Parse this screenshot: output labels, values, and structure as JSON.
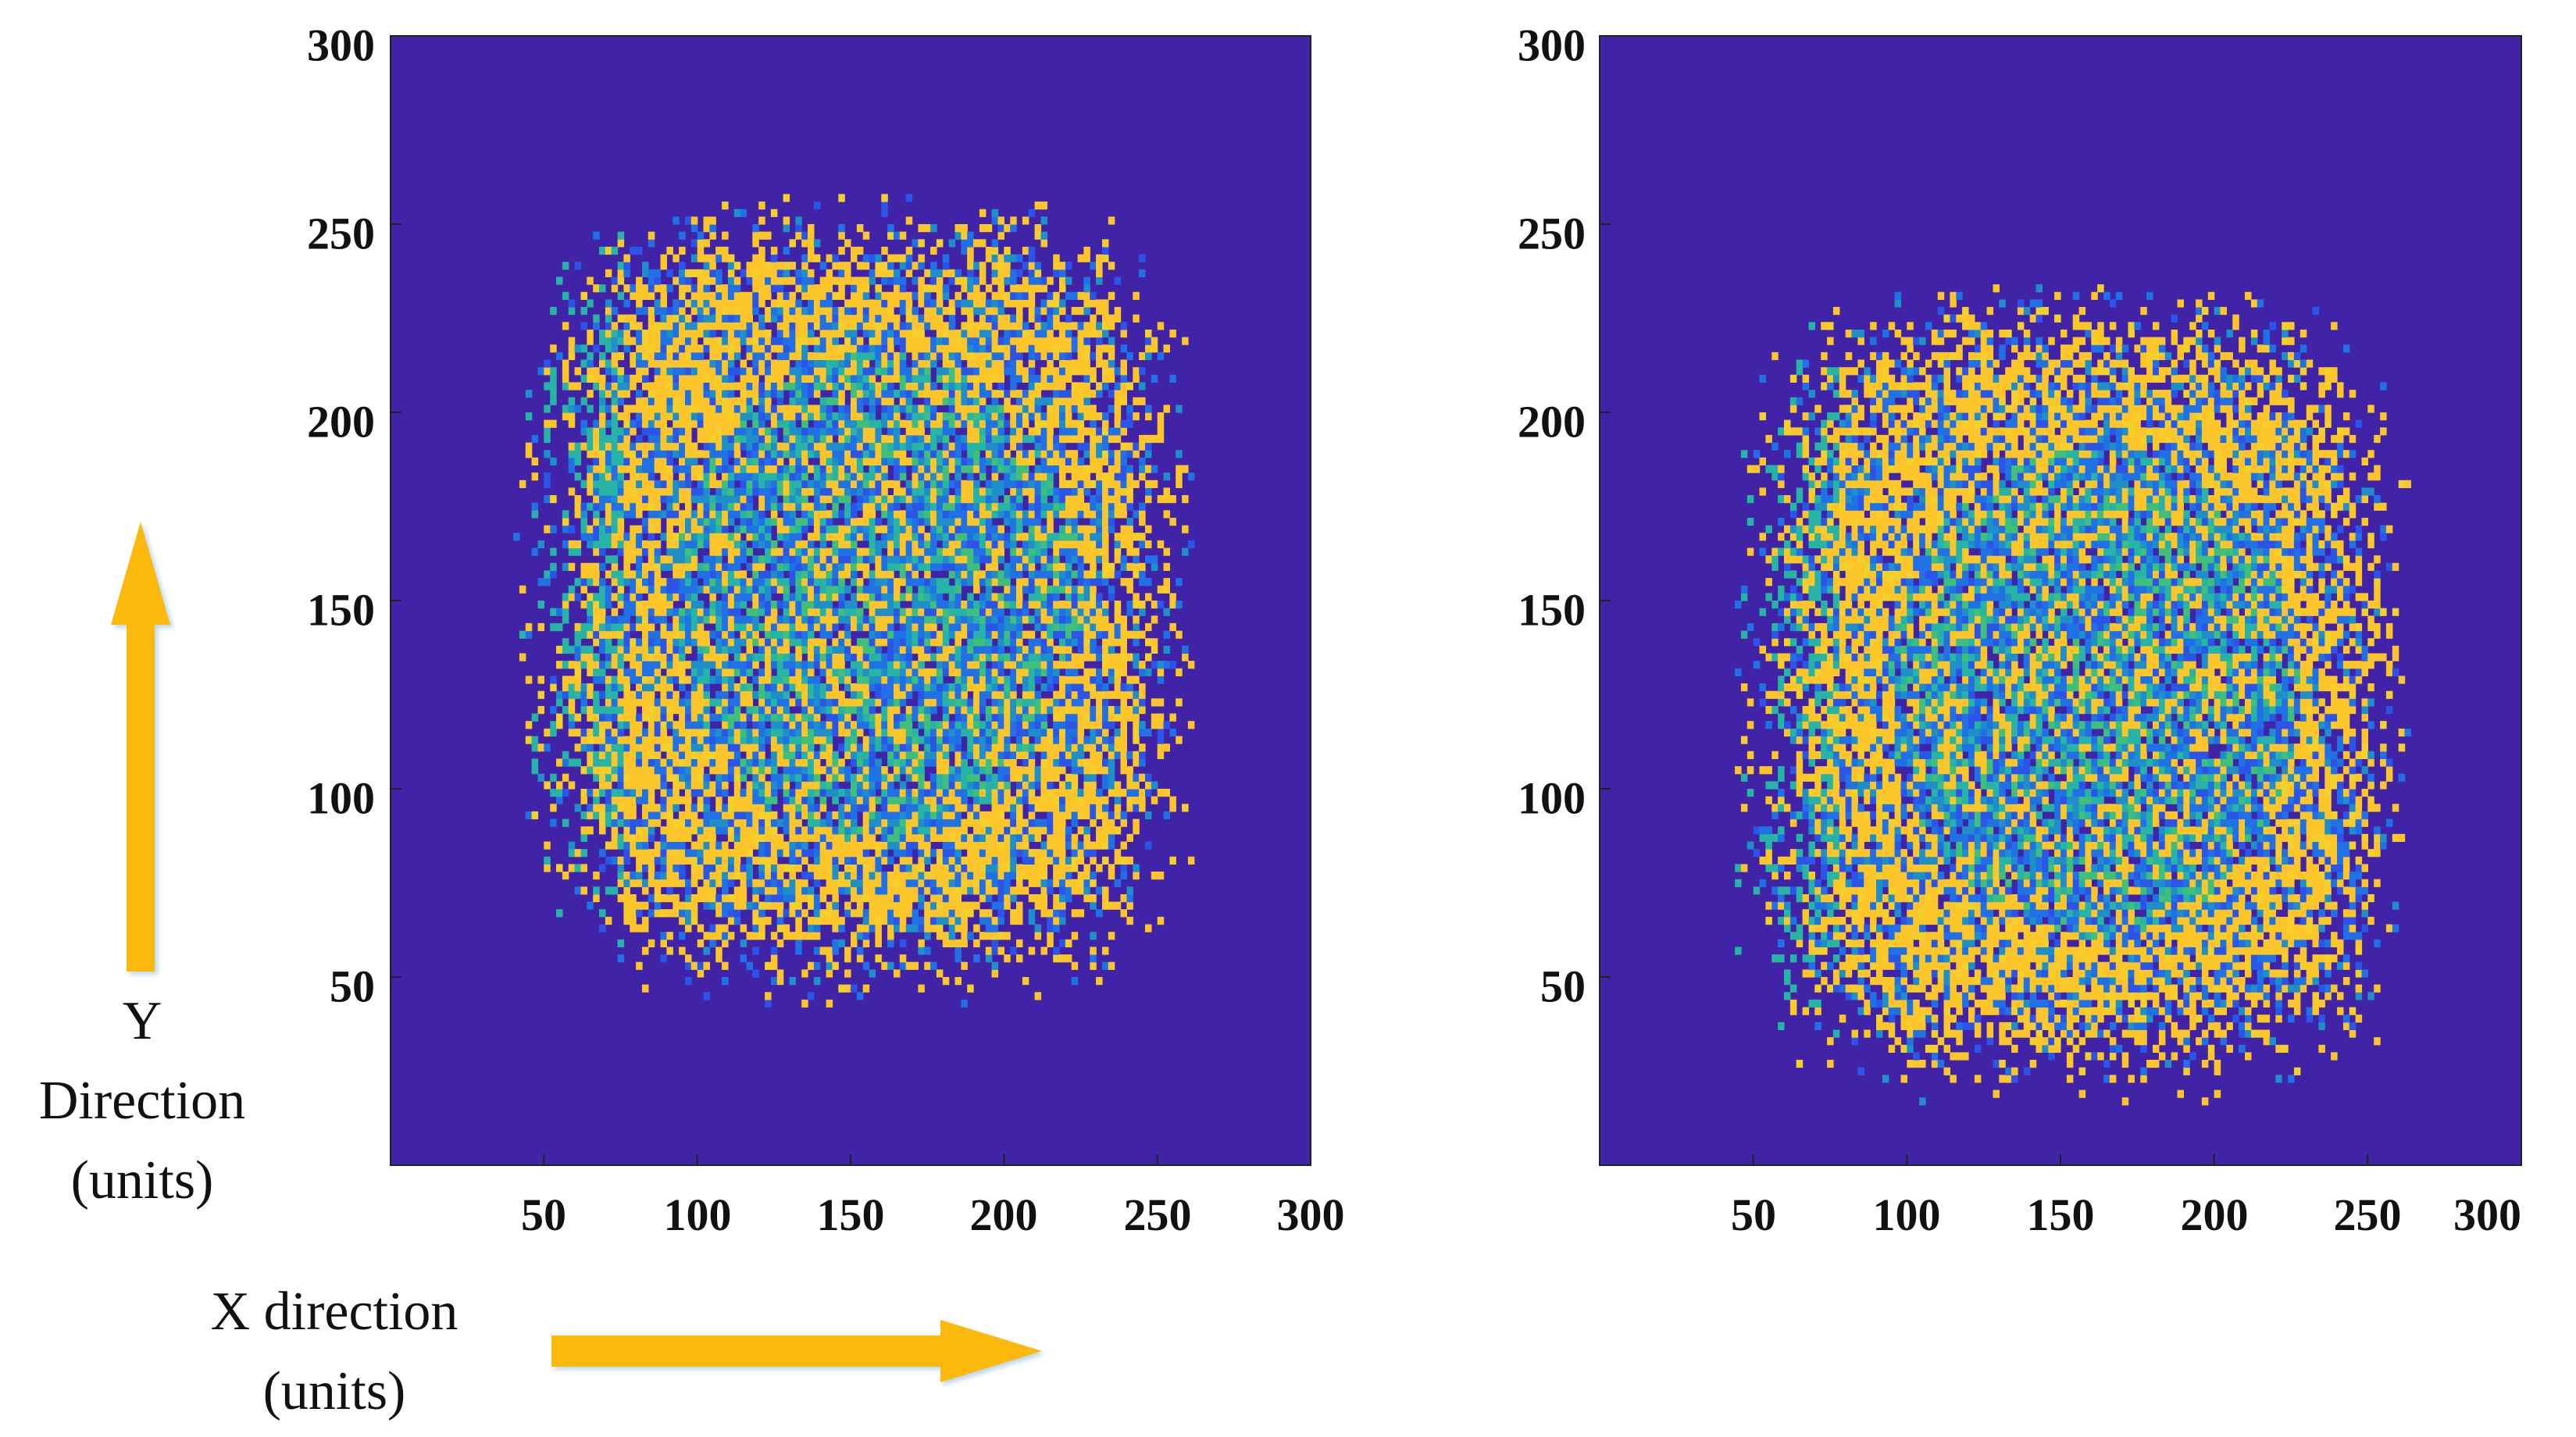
{
  "colors": {
    "background": "#4023a6",
    "arrow": "#fdb90b",
    "palette": [
      "#fcc62a",
      "#f5d02a",
      "#2171e6",
      "#2b55e8",
      "#1e8fc8",
      "#27b3a6",
      "#3fbe7c"
    ]
  },
  "annotations": {
    "y_direction": [
      "Y",
      "Direction",
      "(units)"
    ],
    "x_direction": [
      "X direction",
      "(units)"
    ]
  },
  "chart_data": [
    {
      "type": "heatmap",
      "xlim": [
        0,
        300
      ],
      "ylim": [
        0,
        300
      ],
      "x_ticks": [
        50,
        100,
        150,
        200,
        250,
        300
      ],
      "y_ticks": [
        50,
        100,
        150,
        200,
        250,
        300
      ],
      "x_tick_labels": [
        "50",
        "100",
        "150",
        "200",
        "250",
        "300"
      ],
      "y_tick_labels": [
        "50",
        "100",
        "150",
        "200",
        "250",
        "300"
      ],
      "background_value_color": "#4023a6",
      "pattern_region": {
        "x_range": [
          40,
          262
        ],
        "y_range": [
          42,
          258
        ],
        "center": [
          158,
          150
        ]
      },
      "grid": false
    },
    {
      "type": "heatmap",
      "xlim": [
        0,
        300
      ],
      "ylim": [
        0,
        300
      ],
      "x_ticks": [
        50,
        100,
        150,
        200,
        250,
        300
      ],
      "y_ticks": [
        50,
        100,
        150,
        200,
        250,
        300
      ],
      "x_tick_labels": [
        "50",
        "100",
        "150",
        "200",
        "250",
        "300"
      ],
      "y_tick_labels": [
        "50",
        "100",
        "150",
        "200",
        "250",
        "300"
      ],
      "background_value_color": "#4023a6",
      "pattern_region": {
        "x_range": [
          42,
          264
        ],
        "y_range": [
          16,
          234
        ],
        "center": [
          160,
          125
        ]
      },
      "grid": false
    }
  ]
}
